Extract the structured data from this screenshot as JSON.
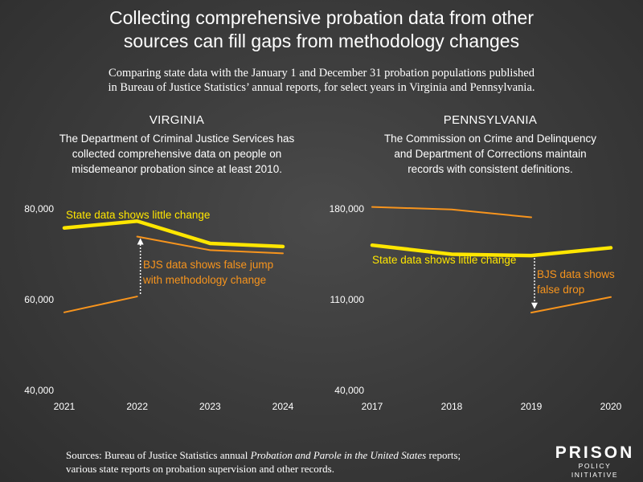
{
  "header": {
    "title_lines": [
      "Collecting comprehensive probation data from other",
      "sources can fill gaps from methodology changes"
    ],
    "subtitle_lines": [
      "Comparing state data with the January 1 and December 31 probation populations published",
      "in Bureau of Justice Statistics’ annual reports, for select years in Virginia and Pennsylvania."
    ]
  },
  "panels": [
    {
      "name": "VIRGINIA",
      "desc_lines": [
        "The Department of Criminal Justice Services has",
        "collected comprehensive data on people on",
        "misdemeanor probation since at least 2010."
      ]
    },
    {
      "name": "PENNSYLVANIA",
      "desc_lines": [
        "The Commission on Crime and Delinquency",
        "and Department of Corrections maintain",
        "records with consistent definitions."
      ]
    }
  ],
  "colors": {
    "state": "#ffe600",
    "bjs": "#f7941d",
    "text": "#ffffff",
    "arrow": "#ffffff"
  },
  "chart_data": [
    {
      "type": "line",
      "x": [
        2021,
        2022,
        2023,
        2024
      ],
      "ylim": [
        40000,
        80000
      ],
      "yticks": [
        40000,
        60000,
        80000
      ],
      "ytick_labels": [
        "40,000",
        "60,000",
        "80,000"
      ],
      "series": [
        {
          "kind": "state",
          "segments": [
            {
              "x": [
                2021,
                2022,
                2023,
                2024
              ],
              "y": [
                75800,
                77300,
                72400,
                71700
              ]
            }
          ]
        },
        {
          "kind": "bjs",
          "segments": [
            {
              "x": [
                2021,
                2022
              ],
              "y": [
                57200,
                60700
              ]
            },
            {
              "x": [
                2022,
                2023,
                2024
              ],
              "y": [
                73900,
                70900,
                70200
              ]
            }
          ]
        }
      ],
      "annotations": [
        {
          "text": "State data shows little change",
          "color": "yellow"
        },
        {
          "text_lines": [
            "BJS data shows false jump",
            "with methodology change"
          ],
          "color": "orange",
          "arrow": {
            "x": 2022,
            "from": 60700,
            "to": 73900
          }
        }
      ]
    },
    {
      "type": "line",
      "x": [
        2017,
        2018,
        2019,
        2020
      ],
      "ylim": [
        40000,
        180000
      ],
      "yticks": [
        40000,
        110000,
        180000
      ],
      "ytick_labels": [
        "40,000",
        "110,000",
        "180,000"
      ],
      "series": [
        {
          "kind": "state",
          "segments": [
            {
              "x": [
                2017,
                2018,
                2019,
                2020
              ],
              "y": [
                152000,
                145000,
                144000,
                150000
              ]
            }
          ]
        },
        {
          "kind": "bjs",
          "segments": [
            {
              "x": [
                2017,
                2018,
                2019
              ],
              "y": [
                181500,
                179500,
                173500
              ]
            },
            {
              "x": [
                2019,
                2020
              ],
              "y": [
                100000,
                112000
              ]
            }
          ]
        }
      ],
      "annotations": [
        {
          "text": "State data shows little change",
          "color": "yellow"
        },
        {
          "text_lines": [
            "BJS data shows",
            "false drop"
          ],
          "color": "orange",
          "arrow": {
            "x": 2019,
            "from": 144000,
            "to": 101500
          }
        }
      ]
    }
  ],
  "footer": {
    "sources_pre": "Sources: Bureau of Justice Statistics annual ",
    "sources_italic": "Probation and Parole in the United States",
    "sources_post": " reports; various state reports on probation supervision and other records.",
    "logo_top": "PRISON",
    "logo_bottom": "POLICY INITIATIVE"
  }
}
